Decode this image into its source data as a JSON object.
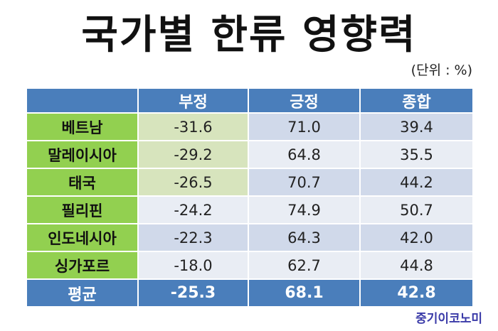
{
  "header": {
    "title": "국가별 한류 영향력",
    "unit": "(단위 : %)"
  },
  "table": {
    "columns": [
      "부정",
      "긍정",
      "종합"
    ],
    "rows": [
      [
        "베트남",
        "-31.6",
        "71.0",
        "39.4"
      ],
      [
        "말레이시아",
        "-29.2",
        "64.8",
        "35.5"
      ],
      [
        "태국",
        "-26.5",
        "70.7",
        "44.2"
      ],
      [
        "필리핀",
        "-24.2",
        "74.9",
        "50.7"
      ],
      [
        "인도네시아",
        "-22.3",
        "64.3",
        "42.0"
      ],
      [
        "싱가포르",
        "-18.0",
        "62.7",
        "44.8"
      ]
    ],
    "average": [
      "평균",
      "-25.3",
      "68.1",
      "42.8"
    ]
  },
  "source": "중기이코노미"
}
